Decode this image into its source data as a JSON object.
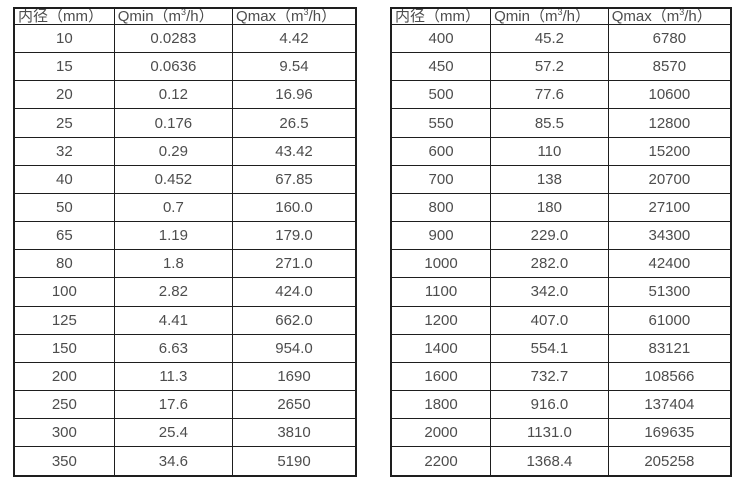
{
  "page": {
    "background": "#ffffff",
    "border_color": "#1e1e1e",
    "text_color": "#4d4d4d"
  },
  "tables": [
    {
      "name": "small-diameter-flow-table",
      "headers": [
        {
          "pre": "内径（mm）",
          "sup": "",
          "post": ""
        },
        {
          "pre": "Qmin（m",
          "sup": "3",
          "post": "/h）"
        },
        {
          "pre": "Qmax（m",
          "sup": "3",
          "post": "/h）"
        }
      ],
      "rows": [
        [
          "10",
          "0.0283",
          "4.42"
        ],
        [
          "15",
          "0.0636",
          "9.54"
        ],
        [
          "20",
          "0.12",
          "16.96"
        ],
        [
          "25",
          "0.176",
          "26.5"
        ],
        [
          "32",
          "0.29",
          "43.42"
        ],
        [
          "40",
          "0.452",
          "67.85"
        ],
        [
          "50",
          "0.7",
          "160.0"
        ],
        [
          "65",
          "1.19",
          "179.0"
        ],
        [
          "80",
          "1.8",
          "271.0"
        ],
        [
          "100",
          "2.82",
          "424.0"
        ],
        [
          "125",
          "4.41",
          "662.0"
        ],
        [
          "150",
          "6.63",
          "954.0"
        ],
        [
          "200",
          "11.3",
          "1690"
        ],
        [
          "250",
          "17.6",
          "2650"
        ],
        [
          "300",
          "25.4",
          "3810"
        ],
        [
          "350",
          "34.6",
          "5190"
        ]
      ]
    },
    {
      "name": "large-diameter-flow-table",
      "headers": [
        {
          "pre": "内径（mm）",
          "sup": "",
          "post": ""
        },
        {
          "pre": "Qmin（m",
          "sup": "3",
          "post": "/h）"
        },
        {
          "pre": "Qmax（m",
          "sup": "3",
          "post": "/h）"
        }
      ],
      "rows": [
        [
          "400",
          "45.2",
          "6780"
        ],
        [
          "450",
          "57.2",
          "8570"
        ],
        [
          "500",
          "77.6",
          "10600"
        ],
        [
          "550",
          "85.5",
          "12800"
        ],
        [
          "600",
          "110",
          "15200"
        ],
        [
          "700",
          "138",
          "20700"
        ],
        [
          "800",
          "180",
          "27100"
        ],
        [
          "900",
          "229.0",
          "34300"
        ],
        [
          "1000",
          "282.0",
          "42400"
        ],
        [
          "1100",
          "342.0",
          "51300"
        ],
        [
          "1200",
          "407.0",
          "61000"
        ],
        [
          "1400",
          "554.1",
          "83121"
        ],
        [
          "1600",
          "732.7",
          "108566"
        ],
        [
          "1800",
          "916.0",
          "137404"
        ],
        [
          "2000",
          "1131.0",
          "169635"
        ],
        [
          "2200",
          "1368.4",
          "205258"
        ]
      ]
    }
  ]
}
